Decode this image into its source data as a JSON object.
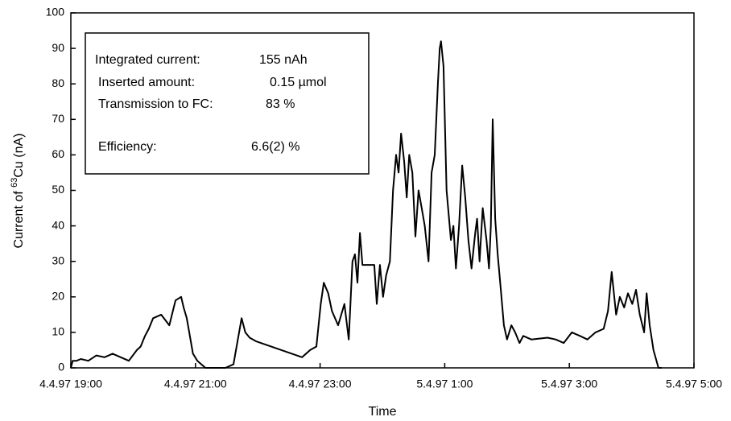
{
  "chart_data": {
    "type": "line",
    "xlabel": "Time",
    "ylabel": {
      "prefix": "Current of ",
      "sup": "63",
      "suffix": "Cu (nA)"
    },
    "annotations": [
      {
        "label": "Integrated current:",
        "value": "155 nAh"
      },
      {
        "label": "Inserted amount:",
        "value": "0.15 µmol"
      },
      {
        "label": "Transmission to FC:",
        "value": "83 %"
      },
      {
        "label": "Efficiency:",
        "value": "6.6(2) %"
      }
    ],
    "xlim": [
      19,
      29
    ],
    "xticks": [
      {
        "value": 19,
        "label": "4.4.97 19:00"
      },
      {
        "value": 21,
        "label": "4.4.97 21:00"
      },
      {
        "value": 23,
        "label": "4.4.97 23:00"
      },
      {
        "value": 25,
        "label": "5.4.97 1:00"
      },
      {
        "value": 27,
        "label": "5.4.97 3:00"
      },
      {
        "value": 29,
        "label": "5.4.97 5:00"
      }
    ],
    "ylim": [
      0,
      100
    ],
    "yticks": [
      0,
      10,
      20,
      30,
      40,
      50,
      60,
      70,
      80,
      90,
      100
    ],
    "color": "#000000",
    "x": [
      19.0,
      19.03,
      19.09,
      19.16,
      19.28,
      19.41,
      19.54,
      19.67,
      19.8,
      19.93,
      20.06,
      20.12,
      20.19,
      20.25,
      20.32,
      20.45,
      20.58,
      20.68,
      20.77,
      20.81,
      20.86,
      20.96,
      21.03,
      21.16,
      21.48,
      21.61,
      21.74,
      21.8,
      21.87,
      21.97,
      22.71,
      22.84,
      22.94,
      23.01,
      23.06,
      23.13,
      23.19,
      23.29,
      23.39,
      23.46,
      23.52,
      23.56,
      23.6,
      23.64,
      23.68,
      23.87,
      23.91,
      23.96,
      24.01,
      24.06,
      24.12,
      24.17,
      24.22,
      24.26,
      24.3,
      24.35,
      24.39,
      24.43,
      24.48,
      24.53,
      24.58,
      24.63,
      24.68,
      24.74,
      24.79,
      24.84,
      24.89,
      24.92,
      24.94,
      24.98,
      25.03,
      25.1,
      25.14,
      25.18,
      25.23,
      25.28,
      25.33,
      25.38,
      25.43,
      25.49,
      25.52,
      25.56,
      25.61,
      25.67,
      25.71,
      25.74,
      25.77,
      25.81,
      25.85,
      25.9,
      25.95,
      26.0,
      26.07,
      26.13,
      26.2,
      26.26,
      26.39,
      26.65,
      26.78,
      26.91,
      27.04,
      27.17,
      27.29,
      27.42,
      27.55,
      27.62,
      27.68,
      27.75,
      27.81,
      27.88,
      27.94,
      28.01,
      28.07,
      28.13,
      28.2,
      28.24,
      28.29,
      28.35,
      28.43,
      28.48
    ],
    "values": [
      0,
      2,
      2,
      2.5,
      2,
      3.5,
      3,
      4,
      3,
      2,
      5,
      6,
      9,
      11,
      14,
      15,
      12,
      19,
      20,
      17,
      14,
      4,
      2,
      0,
      0,
      1,
      14,
      10,
      8.5,
      7.5,
      3,
      5,
      6,
      18,
      24,
      21,
      16,
      12,
      18,
      8,
      30,
      32,
      24,
      38,
      29,
      29,
      18,
      29,
      20,
      26,
      30,
      50,
      60,
      55,
      66,
      58,
      48,
      60,
      55,
      37,
      50,
      45,
      40,
      30,
      55,
      60,
      80,
      90,
      92,
      85,
      50,
      36,
      40,
      28,
      40,
      57,
      48,
      36,
      28,
      38,
      42,
      30,
      45,
      36,
      28,
      40,
      70,
      42,
      32,
      22,
      12,
      8,
      12,
      10,
      7,
      9,
      8,
      8.5,
      8,
      7,
      10,
      9,
      8,
      10,
      11,
      16,
      27,
      15,
      20,
      17,
      21,
      18,
      22,
      15,
      10,
      21,
      12,
      5,
      0,
      0
    ]
  }
}
